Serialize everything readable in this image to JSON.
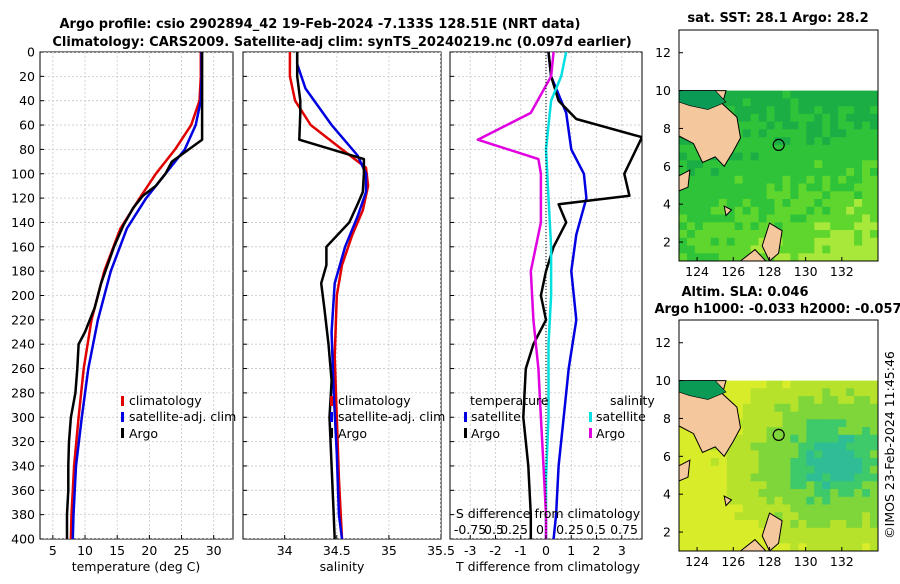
{
  "chart_data": {
    "type": "line",
    "title_line1": "Argo profile: csio 2902894_42 19-Feb-2024 -7.133S 128.51E (NRT data)",
    "title_line2": "Climatology: CARS2009. Satellite-adj clim: synTS_20240219.nc (0.097d earlier)",
    "depth_ticks": [
      "0",
      "20",
      "40",
      "60",
      "80",
      "100",
      "120",
      "140",
      "160",
      "180",
      "200",
      "220",
      "240",
      "260",
      "280",
      "300",
      "320",
      "340",
      "360",
      "380",
      "400"
    ],
    "depth_ylim": [
      0,
      400
    ],
    "colors": {
      "climatology": "#e00000",
      "satellite": "#0000e0",
      "argo": "#000000",
      "sat_salinity": "#00e0e0",
      "argo_salinity_diff": "#e000e0"
    },
    "temperature": {
      "xlabel": "temperature (deg C)",
      "xlim": [
        3,
        33
      ],
      "xticks": [
        "5",
        "10",
        "15",
        "20",
        "25",
        "30"
      ],
      "legend": [
        "climatology",
        "satellite-adj. clim",
        "Argo"
      ],
      "series": [
        {
          "name": "climatology",
          "color": "#e00000",
          "points": [
            [
              28.0,
              0
            ],
            [
              28.0,
              20
            ],
            [
              27.8,
              40
            ],
            [
              26.5,
              60
            ],
            [
              24.0,
              80
            ],
            [
              21.0,
              100
            ],
            [
              18.5,
              120
            ],
            [
              15.5,
              145
            ],
            [
              13.0,
              180
            ],
            [
              11.0,
              220
            ],
            [
              9.8,
              260
            ],
            [
              9.0,
              300
            ],
            [
              8.3,
              340
            ],
            [
              7.9,
              380
            ],
            [
              7.8,
              400
            ]
          ]
        },
        {
          "name": "satellite-adj. clim",
          "color": "#0000e0",
          "points": [
            [
              28.1,
              0
            ],
            [
              28.1,
              20
            ],
            [
              28.0,
              40
            ],
            [
              27.2,
              60
            ],
            [
              25.5,
              80
            ],
            [
              22.5,
              100
            ],
            [
              19.5,
              120
            ],
            [
              16.5,
              145
            ],
            [
              14.0,
              180
            ],
            [
              12.0,
              220
            ],
            [
              10.5,
              260
            ],
            [
              9.5,
              300
            ],
            [
              8.6,
              340
            ],
            [
              8.2,
              380
            ],
            [
              8.1,
              400
            ]
          ]
        },
        {
          "name": "Argo",
          "color": "#000000",
          "points": [
            [
              28.2,
              0
            ],
            [
              28.2,
              20
            ],
            [
              28.2,
              40
            ],
            [
              28.2,
              60
            ],
            [
              28.2,
              72
            ],
            [
              23.5,
              90
            ],
            [
              22.5,
              100
            ],
            [
              21.0,
              110
            ],
            [
              19.0,
              118
            ],
            [
              17.5,
              128
            ],
            [
              16.0,
              142
            ],
            [
              14.5,
              160
            ],
            [
              12.5,
              190
            ],
            [
              11.5,
              210
            ],
            [
              10.0,
              230
            ],
            [
              9.0,
              240
            ],
            [
              8.8,
              260
            ],
            [
              8.5,
              280
            ],
            [
              7.8,
              300
            ],
            [
              7.5,
              320
            ],
            [
              7.4,
              340
            ],
            [
              7.4,
              360
            ],
            [
              7.2,
              380
            ],
            [
              7.2,
              400
            ]
          ]
        }
      ]
    },
    "salinity": {
      "xlabel": "salinity",
      "xlim": [
        33.6,
        35.5
      ],
      "xticks": [
        "34",
        "34.5",
        "35",
        "35.5"
      ],
      "legend": [
        "climatology",
        "satellite-adj. clim",
        "Argo"
      ],
      "series": [
        {
          "name": "climatology",
          "color": "#e00000",
          "points": [
            [
              34.05,
              0
            ],
            [
              34.05,
              20
            ],
            [
              34.1,
              40
            ],
            [
              34.25,
              60
            ],
            [
              34.55,
              80
            ],
            [
              34.78,
              95
            ],
            [
              34.8,
              110
            ],
            [
              34.75,
              130
            ],
            [
              34.65,
              150
            ],
            [
              34.55,
              175
            ],
            [
              34.5,
              200
            ],
            [
              34.48,
              250
            ],
            [
              34.5,
              300
            ],
            [
              34.52,
              350
            ],
            [
              34.55,
              400
            ]
          ]
        },
        {
          "name": "satellite-adj. clim",
          "color": "#0000e0",
          "points": [
            [
              34.12,
              0
            ],
            [
              34.12,
              10
            ],
            [
              34.2,
              30
            ],
            [
              34.45,
              60
            ],
            [
              34.7,
              85
            ],
            [
              34.78,
              100
            ],
            [
              34.78,
              115
            ],
            [
              34.7,
              135
            ],
            [
              34.58,
              160
            ],
            [
              34.48,
              190
            ],
            [
              34.45,
              230
            ],
            [
              34.47,
              280
            ],
            [
              34.5,
              330
            ],
            [
              34.52,
              380
            ],
            [
              34.55,
              400
            ]
          ]
        },
        {
          "name": "Argo",
          "color": "#000000",
          "points": [
            [
              34.12,
              0
            ],
            [
              34.12,
              20
            ],
            [
              34.15,
              40
            ],
            [
              34.15,
              50
            ],
            [
              34.14,
              72
            ],
            [
              34.76,
              88
            ],
            [
              34.76,
              100
            ],
            [
              34.75,
              115
            ],
            [
              34.7,
              125
            ],
            [
              34.62,
              140
            ],
            [
              34.4,
              160
            ],
            [
              34.4,
              175
            ],
            [
              34.35,
              190
            ],
            [
              34.38,
              210
            ],
            [
              34.42,
              240
            ],
            [
              34.45,
              270
            ],
            [
              34.43,
              300
            ],
            [
              34.45,
              340
            ],
            [
              34.47,
              380
            ],
            [
              34.48,
              400
            ]
          ]
        }
      ]
    },
    "difference": {
      "xlabel": "T difference from climatology",
      "top_axis_label": "S difference from climatology",
      "xlim": [
        -3.8,
        3.8
      ],
      "xticks": [
        "-3",
        "-2",
        "-1",
        "0",
        "1",
        "2",
        "3"
      ],
      "top_ticks": [
        "-0.75",
        "0.5",
        "0.25",
        "0",
        "0.25",
        "0.5",
        "0.75"
      ],
      "legend_temperature_title": "temperature",
      "legend_salinity_title": "salinity",
      "legend_temperature": [
        "satellite",
        "Argo"
      ],
      "legend_salinity": [
        "satellite",
        "Argo"
      ],
      "series": [
        {
          "name": "T satellite",
          "color": "#0000e0",
          "points": [
            [
              0.1,
              0
            ],
            [
              0.2,
              20
            ],
            [
              0.8,
              50
            ],
            [
              1.0,
              80
            ],
            [
              1.5,
              100
            ],
            [
              1.6,
              120
            ],
            [
              1.2,
              150
            ],
            [
              1.0,
              180
            ],
            [
              1.2,
              220
            ],
            [
              0.9,
              260
            ],
            [
              0.7,
              300
            ],
            [
              0.5,
              340
            ],
            [
              0.4,
              380
            ],
            [
              0.3,
              400
            ]
          ]
        },
        {
          "name": "T Argo",
          "color": "#000000",
          "points": [
            [
              0.1,
              0
            ],
            [
              0.2,
              20
            ],
            [
              0.5,
              40
            ],
            [
              1.2,
              55
            ],
            [
              3.8,
              70
            ],
            [
              3.1,
              100
            ],
            [
              3.3,
              118
            ],
            [
              0.5,
              125
            ],
            [
              0.8,
              140
            ],
            [
              0.3,
              160
            ],
            [
              0.0,
              180
            ],
            [
              -0.2,
              200
            ],
            [
              0.0,
              220
            ],
            [
              -0.5,
              240
            ],
            [
              -0.8,
              260
            ],
            [
              -0.9,
              300
            ],
            [
              -0.7,
              340
            ],
            [
              -0.6,
              380
            ],
            [
              -0.6,
              400
            ]
          ]
        },
        {
          "name": "S satellite",
          "color": "#00e0e0",
          "points": [
            [
              0.8,
              0
            ],
            [
              0.6,
              20
            ],
            [
              0.2,
              40
            ],
            [
              0.0,
              80
            ],
            [
              0.1,
              120
            ],
            [
              0.2,
              160
            ],
            [
              0.2,
              200
            ],
            [
              0.1,
              240
            ],
            [
              0.1,
              300
            ],
            [
              0.0,
              350
            ],
            [
              0.0,
              400
            ]
          ]
        },
        {
          "name": "S Argo",
          "color": "#e000e0",
          "points": [
            [
              0.3,
              0
            ],
            [
              0.2,
              20
            ],
            [
              -0.6,
              50
            ],
            [
              -2.7,
              72
            ],
            [
              -0.3,
              88
            ],
            [
              -0.2,
              100
            ],
            [
              -0.2,
              140
            ],
            [
              -0.6,
              180
            ],
            [
              -0.5,
              220
            ],
            [
              -0.3,
              260
            ],
            [
              -0.2,
              300
            ],
            [
              -0.1,
              340
            ],
            [
              0.0,
              380
            ],
            [
              0.0,
              400
            ]
          ]
        }
      ]
    },
    "map_sst": {
      "title": "sat. SST: 28.1 Argo: 28.2",
      "xticks": [
        "124",
        "126",
        "128",
        "130",
        "132"
      ],
      "yticks": [
        "2",
        "4",
        "6",
        "8",
        "10",
        "12"
      ],
      "lon_range": [
        123,
        134
      ],
      "lat_range": [
        1,
        13.2
      ],
      "argo_position": [
        128.51,
        7.133
      ]
    },
    "map_sla": {
      "title_line1": "Altim. SLA: 0.046",
      "title_line2": "Argo h1000: -0.033 h2000: -0.057",
      "xticks": [
        "124",
        "126",
        "128",
        "130",
        "132"
      ],
      "yticks": [
        "2",
        "4",
        "6",
        "8",
        "10",
        "12"
      ],
      "lon_range": [
        123,
        134
      ],
      "lat_range": [
        1,
        13.2
      ],
      "argo_position": [
        128.51,
        7.133
      ]
    },
    "credit": "©IMOS 23-Feb-2024 11:45:46"
  }
}
